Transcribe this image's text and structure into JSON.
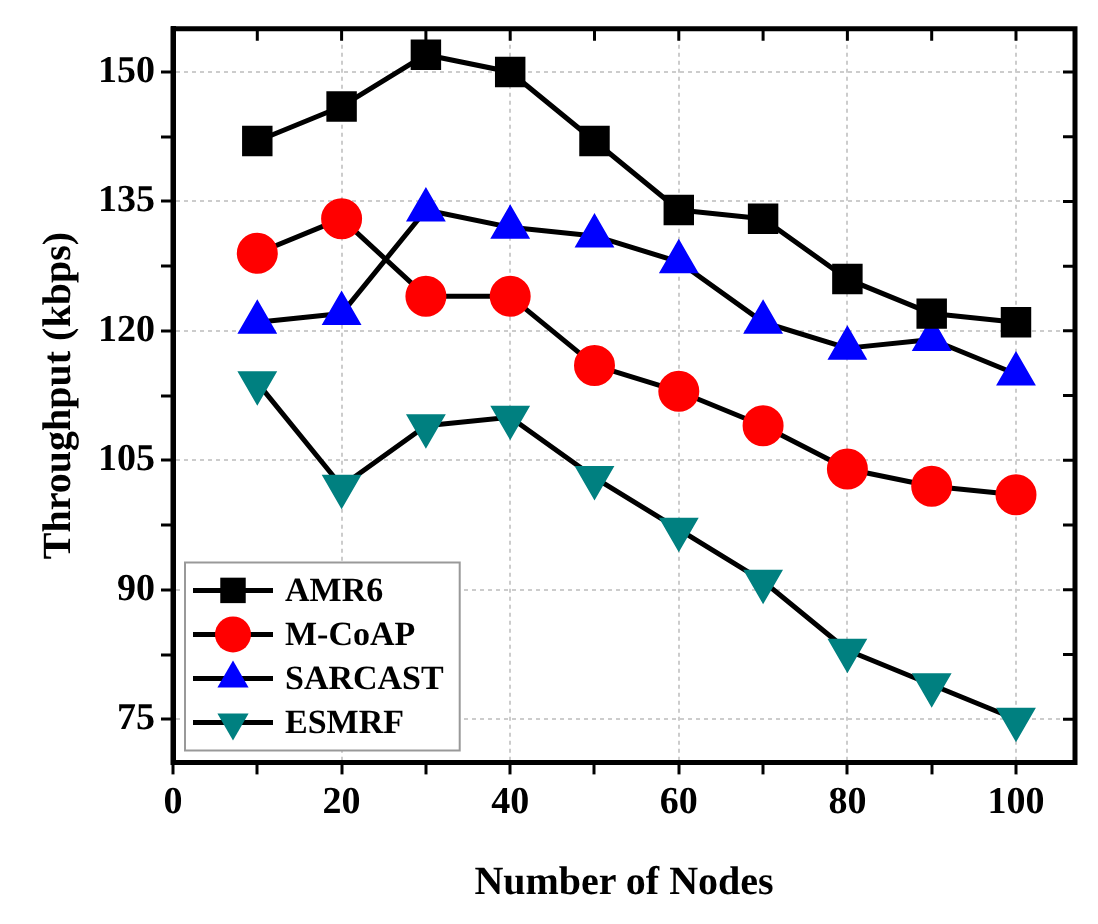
{
  "chart_data": {
    "type": "line",
    "xlabel": "Number of Nodes",
    "ylabel": "Throughput (kbps)",
    "x": [
      10,
      20,
      30,
      40,
      50,
      60,
      70,
      80,
      90,
      100
    ],
    "series": [
      {
        "name": "AMR6",
        "color": "#000000",
        "marker": "square",
        "values": [
          142,
          146,
          152,
          150,
          142,
          134,
          133,
          126,
          122,
          121
        ]
      },
      {
        "name": "M-CoAP",
        "color": "#ff0000",
        "marker": "circle",
        "values": [
          129,
          133,
          124,
          124,
          116,
          113,
          109,
          104,
          102,
          101
        ]
      },
      {
        "name": "SARCAST",
        "color": "#0000ff",
        "marker": "triangle",
        "values": [
          121,
          122,
          134,
          132,
          131,
          128,
          121,
          118,
          119,
          115
        ]
      },
      {
        "name": "ESMRF",
        "color": "#008080",
        "marker": "triangle_down",
        "values": [
          114,
          102,
          109,
          110,
          103,
          97,
          91,
          83,
          79,
          75
        ]
      }
    ],
    "xlim": [
      0,
      107
    ],
    "xticks": [
      0,
      {
        "value": 10,
        "label": null
      },
      20,
      {
        "value": 30,
        "label": null
      },
      40,
      {
        "value": 50,
        "label": null
      },
      60,
      {
        "value": 70,
        "label": null
      },
      80,
      {
        "value": 90,
        "label": null
      },
      100
    ],
    "ylim": [
      70,
      155
    ],
    "yticks": [
      75,
      {
        "value": 82.5,
        "label": null
      },
      90,
      {
        "value": 97.5,
        "label": null
      },
      105,
      {
        "value": 112.5,
        "label": null
      },
      120,
      {
        "value": 127.5,
        "label": null
      },
      135,
      {
        "value": 142.5,
        "label": null
      },
      150
    ],
    "grid": true,
    "legend": "bottom left",
    "line_style": "solid"
  }
}
